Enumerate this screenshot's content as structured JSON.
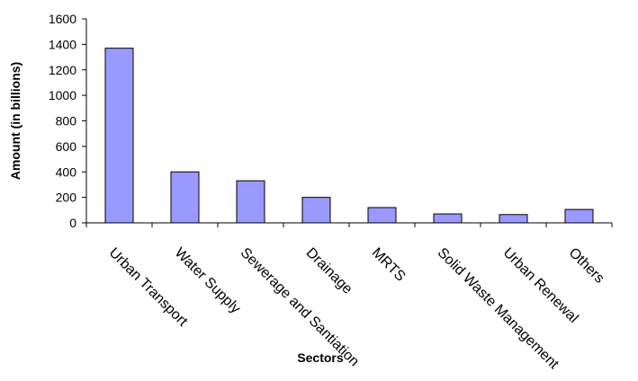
{
  "chart_data": {
    "type": "bar",
    "title": "",
    "xlabel": "Sectors",
    "ylabel": "Amount (in billions)",
    "ylim": [
      0,
      1600
    ],
    "yticks": [
      0,
      200,
      400,
      600,
      800,
      1000,
      1200,
      1400,
      1600
    ],
    "categories": [
      "Urban Transport",
      "Water Supply",
      "Sewerage and Santiation",
      "Drainage",
      "MRTS",
      "Solid Waste Management",
      "Urban Renewal",
      "Others"
    ],
    "series": [
      {
        "values": [
          1370,
          400,
          330,
          200,
          120,
          70,
          65,
          105
        ]
      }
    ],
    "bar_color": "#9999ff",
    "grid": false,
    "legend": "none"
  }
}
